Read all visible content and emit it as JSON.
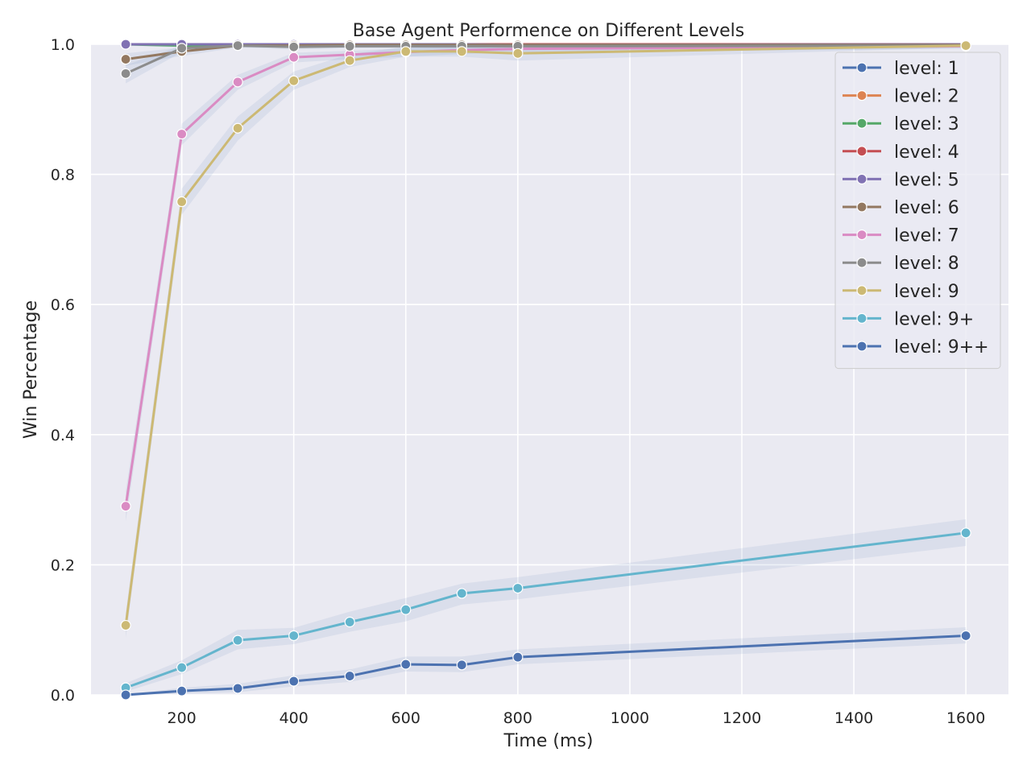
{
  "chart_data": {
    "type": "line",
    "title": "Base Agent Performence on Different Levels",
    "xlabel": "Time (ms)",
    "ylabel": "Win Percentage",
    "xlim": [
      38,
      1676
    ],
    "ylim": [
      0,
      1
    ],
    "xticks": [
      200,
      400,
      600,
      800,
      1000,
      1200,
      1400,
      1600
    ],
    "yticks": [
      0.0,
      0.2,
      0.4,
      0.6,
      0.8,
      1.0
    ],
    "xtick_labels": [
      "200",
      "400",
      "600",
      "800",
      "1000",
      "1200",
      "1400",
      "1600"
    ],
    "ytick_labels": [
      "0.0",
      "0.2",
      "0.4",
      "0.6",
      "0.8",
      "1.0"
    ],
    "grid": true,
    "background": "#eaeaf2",
    "legend_position": "top-right",
    "series": [
      {
        "name": "level: 1",
        "color": "#4c72b0",
        "x": [
          100,
          200,
          300,
          400,
          500,
          600,
          700,
          800,
          1600
        ],
        "y": [
          1.0,
          1.0,
          1.0,
          1.0,
          1.0,
          1.0,
          1.0,
          1.0,
          1.0
        ],
        "lower": [
          1.0,
          1.0,
          1.0,
          1.0,
          1.0,
          1.0,
          1.0,
          1.0,
          1.0
        ],
        "upper": [
          1.0,
          1.0,
          1.0,
          1.0,
          1.0,
          1.0,
          1.0,
          1.0,
          1.0
        ]
      },
      {
        "name": "level: 2",
        "color": "#dd8452",
        "x": [
          100,
          200,
          300,
          400,
          500,
          600,
          700,
          800,
          1600
        ],
        "y": [
          1.0,
          1.0,
          1.0,
          1.0,
          1.0,
          1.0,
          1.0,
          1.0,
          1.0
        ],
        "lower": [
          1.0,
          1.0,
          1.0,
          1.0,
          1.0,
          1.0,
          1.0,
          1.0,
          1.0
        ],
        "upper": [
          1.0,
          1.0,
          1.0,
          1.0,
          1.0,
          1.0,
          1.0,
          1.0,
          1.0
        ]
      },
      {
        "name": "level: 3",
        "color": "#55a868",
        "x": [
          100,
          200,
          300,
          400,
          500,
          600,
          700,
          800,
          1600
        ],
        "y": [
          1.0,
          0.998,
          0.999,
          1.0,
          1.0,
          1.0,
          1.0,
          1.0,
          1.0
        ],
        "lower": [
          0.998,
          0.995,
          0.997,
          0.999,
          1.0,
          1.0,
          1.0,
          1.0,
          1.0
        ],
        "upper": [
          1.0,
          1.0,
          1.0,
          1.0,
          1.0,
          1.0,
          1.0,
          1.0,
          1.0
        ]
      },
      {
        "name": "level: 4",
        "color": "#c44e52",
        "x": [
          100,
          200,
          300,
          400,
          500,
          600,
          700,
          800,
          1600
        ],
        "y": [
          1.0,
          1.0,
          1.0,
          1.0,
          1.0,
          1.0,
          1.0,
          1.0,
          1.0
        ],
        "lower": [
          1.0,
          1.0,
          1.0,
          1.0,
          1.0,
          1.0,
          1.0,
          1.0,
          1.0
        ],
        "upper": [
          1.0,
          1.0,
          1.0,
          1.0,
          1.0,
          1.0,
          1.0,
          1.0,
          1.0
        ]
      },
      {
        "name": "level: 5",
        "color": "#8172b3",
        "x": [
          100,
          200,
          300,
          400,
          500,
          600,
          700,
          800,
          1600
        ],
        "y": [
          1.0,
          1.0,
          1.0,
          1.0,
          1.0,
          1.0,
          1.0,
          0.999,
          1.0
        ],
        "lower": [
          1.0,
          1.0,
          1.0,
          1.0,
          1.0,
          1.0,
          1.0,
          0.997,
          1.0
        ],
        "upper": [
          1.0,
          1.0,
          1.0,
          1.0,
          1.0,
          1.0,
          1.0,
          1.0,
          1.0
        ]
      },
      {
        "name": "level: 6",
        "color": "#937860",
        "x": [
          100,
          200,
          300,
          400,
          500,
          600,
          700,
          800,
          1600
        ],
        "y": [
          0.977,
          0.989,
          0.998,
          0.998,
          0.999,
          0.999,
          0.999,
          0.999,
          0.999
        ],
        "lower": [
          0.967,
          0.982,
          0.995,
          0.995,
          0.997,
          0.997,
          0.997,
          0.997,
          0.997
        ],
        "upper": [
          0.986,
          0.995,
          1.0,
          1.0,
          1.0,
          1.0,
          1.0,
          1.0,
          1.0
        ]
      },
      {
        "name": "level: 7",
        "color": "#da8bc3",
        "x": [
          100,
          200,
          300,
          400,
          500,
          600,
          700,
          800,
          1600
        ],
        "y": [
          0.29,
          0.862,
          0.942,
          0.98,
          0.984,
          0.988,
          0.991,
          0.993,
          0.997
        ],
        "lower": [
          0.267,
          0.845,
          0.93,
          0.972,
          0.977,
          0.981,
          0.985,
          0.988,
          0.993
        ],
        "upper": [
          0.313,
          0.878,
          0.953,
          0.987,
          0.99,
          0.994,
          0.996,
          0.997,
          1.0
        ]
      },
      {
        "name": "level: 8",
        "color": "#8c8c8c",
        "x": [
          100,
          200,
          300,
          400,
          500,
          600,
          700,
          800,
          1600
        ],
        "y": [
          0.955,
          0.994,
          0.998,
          0.996,
          0.997,
          0.997,
          0.997,
          0.997,
          0.998
        ],
        "lower": [
          0.94,
          0.988,
          0.995,
          0.992,
          0.994,
          0.994,
          0.994,
          0.994,
          0.995
        ],
        "upper": [
          0.968,
          0.998,
          1.0,
          0.999,
          1.0,
          1.0,
          1.0,
          1.0,
          1.0
        ]
      },
      {
        "name": "level: 9",
        "color": "#ccb974",
        "x": [
          100,
          200,
          300,
          400,
          500,
          600,
          700,
          800,
          1600
        ],
        "y": [
          0.107,
          0.758,
          0.871,
          0.944,
          0.975,
          0.989,
          0.989,
          0.986,
          0.998
        ],
        "lower": [
          0.088,
          0.738,
          0.852,
          0.93,
          0.965,
          0.981,
          0.981,
          0.975,
          0.995
        ],
        "upper": [
          0.126,
          0.778,
          0.889,
          0.958,
          0.985,
          0.996,
          0.996,
          0.995,
          1.0
        ]
      },
      {
        "name": "level: 9+",
        "color": "#64b5cd",
        "x": [
          100,
          200,
          300,
          400,
          500,
          600,
          700,
          800,
          1600
        ],
        "y": [
          0.011,
          0.042,
          0.084,
          0.091,
          0.112,
          0.131,
          0.156,
          0.164,
          0.249
        ],
        "lower": [
          0.005,
          0.032,
          0.07,
          0.078,
          0.097,
          0.113,
          0.139,
          0.147,
          0.229
        ],
        "upper": [
          0.018,
          0.053,
          0.1,
          0.103,
          0.128,
          0.149,
          0.171,
          0.181,
          0.27
        ]
      },
      {
        "name": "level: 9++",
        "color": "#4c72b0",
        "x": [
          100,
          200,
          300,
          400,
          500,
          600,
          700,
          800,
          1600
        ],
        "y": [
          0.0,
          0.006,
          0.01,
          0.021,
          0.029,
          0.047,
          0.046,
          0.058,
          0.091
        ],
        "lower": [
          0.0,
          0.002,
          0.004,
          0.013,
          0.02,
          0.036,
          0.035,
          0.047,
          0.079
        ],
        "upper": [
          0.0,
          0.011,
          0.017,
          0.03,
          0.039,
          0.059,
          0.059,
          0.07,
          0.104
        ]
      }
    ]
  }
}
